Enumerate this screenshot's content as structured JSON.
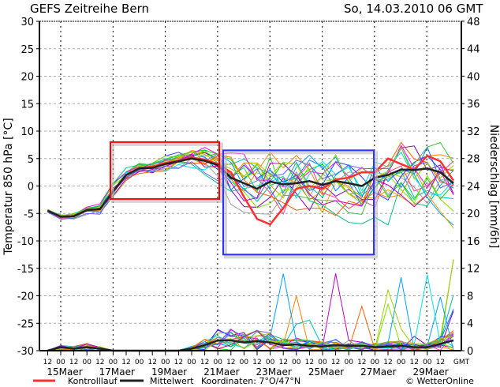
{
  "header": {
    "title": "GEFS Zeitreihe Bern",
    "date": "So, 14.03.2010 06 GMT"
  },
  "legend": {
    "control": "Kontrolllauf",
    "mean": "Mittelwert",
    "coords": "Koordinaten: 7°O/47°N",
    "brand": "© WetterOnline"
  },
  "colors": {
    "control": "#ff3030",
    "mean": "#222222",
    "highlight_warm": "#ff0000",
    "highlight_cold": "#3030ff",
    "members": [
      "#00c0c0",
      "#ff8000",
      "#00e000",
      "#8000c0",
      "#c0c000",
      "#0080ff",
      "#ff00ff",
      "#00c080",
      "#a0a0a0",
      "#2040ff",
      "#80e000",
      "#ff4080",
      "#00a0ff",
      "#e0a000",
      "#40c040",
      "#c000c0",
      "#00e0e0",
      "#ff6000",
      "#6060ff",
      "#a0d000"
    ]
  },
  "chart_data": {
    "type": "line",
    "title": "GEFS Zeitreihe Bern",
    "ylabel": "Temperatur 850 hPa [°C]",
    "y2label": "Niederschlag [mm/6h]",
    "ylim": [
      -30,
      30
    ],
    "y2lim": [
      0,
      48
    ],
    "yticks": [
      30,
      25,
      20,
      15,
      10,
      5,
      0,
      -5,
      -10,
      -15,
      -20,
      -25,
      -30
    ],
    "y2ticks": [
      48,
      44,
      40,
      36,
      32,
      28,
      24,
      20,
      16,
      12,
      8,
      4,
      0
    ],
    "xhours": [
      "12",
      "00",
      "12",
      "00",
      "12",
      "00",
      "12",
      "00",
      "12",
      "00",
      "12",
      "00",
      "12",
      "00",
      "12",
      "00",
      "12",
      "00",
      "12",
      "00",
      "12",
      "00",
      "12",
      "00",
      "12",
      "00",
      "12",
      "00",
      "12",
      "00",
      "12",
      "GMT"
    ],
    "xdays": [
      "15Maer",
      "17Maer",
      "19Maer",
      "21Maer",
      "23Maer",
      "25Maer",
      "27Maer",
      "29Maer"
    ],
    "time_step": "12h from 14.03 12 GMT",
    "mean": [
      -4.5,
      -5.6,
      -5.5,
      -4.4,
      -4.2,
      -1,
      2,
      3.2,
      3.3,
      4,
      4.5,
      5,
      4.6,
      3.8,
      1.5,
      0.5,
      -0.5,
      0.8,
      0.3,
      0.5,
      0.9,
      0.2,
      0.9,
      0.5,
      0,
      1.5,
      2,
      3,
      2.9,
      3.2,
      2.5,
      0.5
    ],
    "control": [
      -4.5,
      -5.6,
      -5.5,
      -4.4,
      -4.2,
      -1,
      2,
      3.3,
      3.5,
      4.2,
      4.6,
      5.2,
      4.8,
      4,
      2.5,
      -2,
      -6,
      -7,
      -4,
      -0.5,
      0,
      -0.5,
      1.2,
      1.5,
      2.5,
      2.5,
      5,
      4,
      3,
      5.5,
      4.5,
      1
    ],
    "spread": [
      0.3,
      0.3,
      0.4,
      0.5,
      0.6,
      1,
      0.8,
      0.7,
      0.9,
      1,
      1.2,
      1.3,
      1.8,
      2.5,
      3.5,
      4,
      4.5,
      5,
      5,
      4.5,
      4.5,
      4,
      4,
      4,
      4,
      4,
      4.5,
      4.5,
      5,
      5,
      5,
      5
    ],
    "precip_mean": [
      0,
      0.5,
      0.3,
      0.5,
      0.3,
      0,
      0,
      0,
      0,
      0,
      0,
      0.3,
      0.8,
      1.5,
      1.5,
      1.2,
      1.4,
      1.2,
      0.8,
      0.9,
      0.7,
      0.6,
      0.8,
      0.7,
      0.7,
      0.5,
      0.6,
      0.7,
      0.5,
      0.5,
      1,
      1.5
    ],
    "highlight_boxes": [
      {
        "from": "17.03 00",
        "to": "21.03 00",
        "tmin": -2,
        "tmax": 8,
        "color": "red"
      },
      {
        "from": "21.03 00",
        "to": "27.03 00",
        "tmin": -12,
        "tmax": 6.5,
        "color": "blue"
      }
    ]
  }
}
